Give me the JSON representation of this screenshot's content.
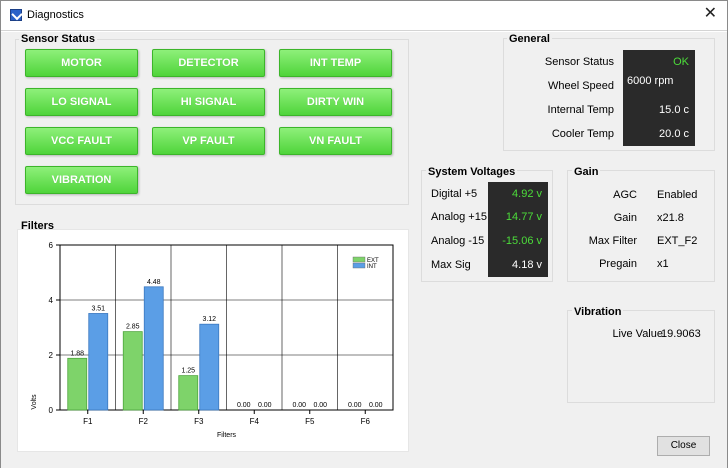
{
  "window": {
    "title": "Diagnostics"
  },
  "sensor_status": {
    "title": "Sensor Status",
    "buttons": [
      "MOTOR",
      "DETECTOR",
      "INT TEMP",
      "LO SIGNAL",
      "HI SIGNAL",
      "DIRTY WIN",
      "VCC FAULT",
      "VP FAULT",
      "VN FAULT",
      "VIBRATION"
    ]
  },
  "general": {
    "title": "General",
    "rows": [
      {
        "label": "Sensor Status",
        "value": "OK"
      },
      {
        "label": "Wheel Speed",
        "value": "6000 rpm"
      },
      {
        "label": "Internal Temp",
        "value": "15.0 c"
      },
      {
        "label": "Cooler Temp",
        "value": "20.0 c"
      }
    ]
  },
  "system_voltages": {
    "title": "System Voltages",
    "rows": [
      {
        "label": "Digital +5",
        "value": "4.92 v"
      },
      {
        "label": "Analog +15",
        "value": "14.77 v"
      },
      {
        "label": "Analog -15",
        "value": "-15.06 v"
      },
      {
        "label": "Max Sig",
        "value": "4.18 v"
      }
    ]
  },
  "gain": {
    "title": "Gain",
    "rows": [
      {
        "label": "AGC",
        "value": "Enabled"
      },
      {
        "label": "Gain",
        "value": "x21.8"
      },
      {
        "label": "Max Filter",
        "value": "EXT_F2"
      },
      {
        "label": "Pregain",
        "value": "x1"
      }
    ]
  },
  "vibration": {
    "title": "Vibration",
    "label": "Live Value",
    "value": "19.9063"
  },
  "filters": {
    "title": "Filters"
  },
  "chart_data": {
    "type": "bar",
    "categories": [
      "F1",
      "F2",
      "F3",
      "F4",
      "F5",
      "F6"
    ],
    "series": [
      {
        "name": "EXT",
        "values": [
          1.88,
          2.85,
          1.25,
          0.0,
          0.0,
          0.0
        ],
        "labels": [
          "1.88",
          "2.85",
          "1.25",
          "0.00",
          "0.00",
          "0.00"
        ],
        "color": "#7ed36a"
      },
      {
        "name": "INT",
        "values": [
          3.51,
          4.48,
          3.12,
          0.0,
          0.0,
          0.0
        ],
        "labels": [
          "3.51",
          "4.48",
          "3.12",
          "0.00",
          "0.00",
          "0.00"
        ],
        "color": "#5b9ee6"
      }
    ],
    "xlabel": "Filters",
    "ylabel": "Volts",
    "ylim": [
      0,
      6
    ],
    "yticks": [
      "0",
      "2",
      "4",
      "6"
    ],
    "grid": true,
    "legend_placement": "top-right"
  },
  "footer": {
    "close_label": "Close"
  },
  "colors": {
    "status_ok": "#4fd43a",
    "value_green": "#4cdc3a",
    "panel_dark": "#2a2a2a"
  }
}
